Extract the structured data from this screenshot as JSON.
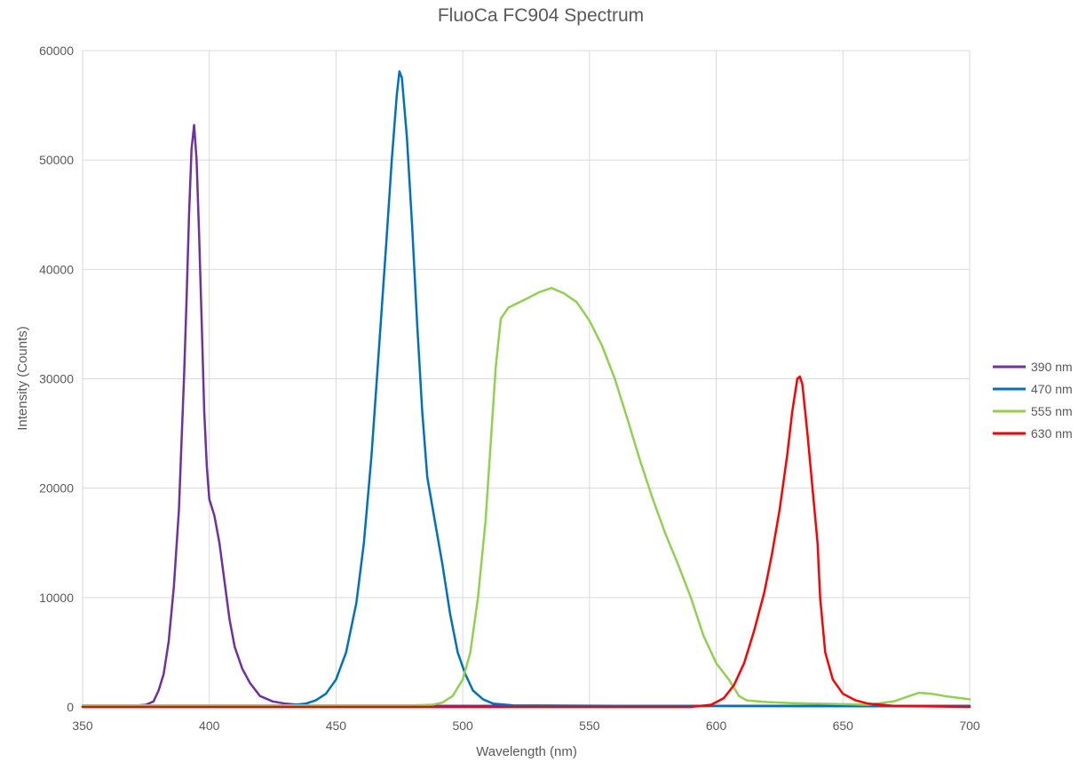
{
  "chart_data": {
    "type": "line",
    "title": "FluoCa FC904 Spectrum",
    "xlabel": "Wavelength (nm)",
    "ylabel": "Intensity (Counts)",
    "xlim": [
      350,
      700
    ],
    "ylim": [
      0,
      60000
    ],
    "x_ticks": [
      350,
      400,
      450,
      500,
      550,
      600,
      650,
      700
    ],
    "y_ticks": [
      0,
      10000,
      20000,
      30000,
      40000,
      50000,
      60000
    ],
    "grid": true,
    "legend_position": "right",
    "series": [
      {
        "name": "390 nm",
        "color": "#7030a0",
        "points": [
          [
            350,
            100
          ],
          [
            370,
            100
          ],
          [
            375,
            200
          ],
          [
            378,
            500
          ],
          [
            380,
            1500
          ],
          [
            382,
            3000
          ],
          [
            384,
            6000
          ],
          [
            386,
            11000
          ],
          [
            388,
            18000
          ],
          [
            389,
            24000
          ],
          [
            390,
            30000
          ],
          [
            391,
            37000
          ],
          [
            392,
            45000
          ],
          [
            393,
            51000
          ],
          [
            394,
            53200
          ],
          [
            395,
            50000
          ],
          [
            396,
            43000
          ],
          [
            397,
            35000
          ],
          [
            398,
            27000
          ],
          [
            399,
            22000
          ],
          [
            400,
            19000
          ],
          [
            402,
            17500
          ],
          [
            404,
            15000
          ],
          [
            406,
            11500
          ],
          [
            408,
            8000
          ],
          [
            410,
            5500
          ],
          [
            413,
            3500
          ],
          [
            416,
            2200
          ],
          [
            420,
            1000
          ],
          [
            425,
            500
          ],
          [
            430,
            300
          ],
          [
            435,
            200
          ],
          [
            440,
            150
          ],
          [
            460,
            150
          ],
          [
            480,
            100
          ],
          [
            700,
            100
          ]
        ]
      },
      {
        "name": "470 nm",
        "color": "#0070c0",
        "points": [
          [
            350,
            50
          ],
          [
            430,
            100
          ],
          [
            438,
            300
          ],
          [
            442,
            600
          ],
          [
            446,
            1200
          ],
          [
            450,
            2500
          ],
          [
            454,
            5000
          ],
          [
            458,
            9500
          ],
          [
            461,
            15000
          ],
          [
            464,
            23000
          ],
          [
            467,
            33000
          ],
          [
            470,
            43000
          ],
          [
            472,
            50000
          ],
          [
            474,
            56000
          ],
          [
            475,
            58100
          ],
          [
            476,
            57500
          ],
          [
            478,
            52000
          ],
          [
            480,
            44000
          ],
          [
            482,
            35000
          ],
          [
            484,
            27000
          ],
          [
            486,
            21000
          ],
          [
            489,
            17000
          ],
          [
            492,
            13000
          ],
          [
            495,
            8500
          ],
          [
            498,
            5000
          ],
          [
            501,
            3000
          ],
          [
            504,
            1500
          ],
          [
            508,
            700
          ],
          [
            512,
            300
          ],
          [
            520,
            150
          ],
          [
            560,
            100
          ],
          [
            700,
            50
          ]
        ]
      },
      {
        "name": "555 nm",
        "color": "#92d050",
        "points": [
          [
            350,
            150
          ],
          [
            470,
            150
          ],
          [
            480,
            150
          ],
          [
            488,
            200
          ],
          [
            492,
            400
          ],
          [
            496,
            1000
          ],
          [
            500,
            2500
          ],
          [
            503,
            5000
          ],
          [
            506,
            10000
          ],
          [
            509,
            17000
          ],
          [
            511,
            24000
          ],
          [
            513,
            31000
          ],
          [
            515,
            35500
          ],
          [
            518,
            36500
          ],
          [
            525,
            37300
          ],
          [
            530,
            37900
          ],
          [
            535,
            38300
          ],
          [
            540,
            37800
          ],
          [
            545,
            37000
          ],
          [
            550,
            35300
          ],
          [
            555,
            33000
          ],
          [
            560,
            30000
          ],
          [
            565,
            26300
          ],
          [
            570,
            22500
          ],
          [
            575,
            19000
          ],
          [
            580,
            15800
          ],
          [
            585,
            13000
          ],
          [
            590,
            10000
          ],
          [
            595,
            6500
          ],
          [
            600,
            4000
          ],
          [
            605,
            2500
          ],
          [
            609,
            1000
          ],
          [
            612,
            600
          ],
          [
            620,
            450
          ],
          [
            630,
            350
          ],
          [
            640,
            300
          ],
          [
            650,
            250
          ],
          [
            660,
            200
          ],
          [
            670,
            500
          ],
          [
            675,
            900
          ],
          [
            680,
            1300
          ],
          [
            685,
            1200
          ],
          [
            690,
            1000
          ],
          [
            700,
            700
          ]
        ]
      },
      {
        "name": "630 nm",
        "color": "#ff0000",
        "points": [
          [
            350,
            0
          ],
          [
            590,
            0
          ],
          [
            598,
            200
          ],
          [
            603,
            800
          ],
          [
            607,
            2000
          ],
          [
            611,
            4000
          ],
          [
            615,
            7000
          ],
          [
            619,
            10500
          ],
          [
            622,
            14000
          ],
          [
            625,
            18000
          ],
          [
            628,
            23000
          ],
          [
            630,
            27000
          ],
          [
            632,
            30000
          ],
          [
            633,
            30200
          ],
          [
            634,
            29500
          ],
          [
            636,
            25000
          ],
          [
            638,
            20000
          ],
          [
            640,
            15000
          ],
          [
            641,
            10000
          ],
          [
            643,
            5000
          ],
          [
            646,
            2500
          ],
          [
            650,
            1200
          ],
          [
            655,
            600
          ],
          [
            660,
            300
          ],
          [
            670,
            100
          ],
          [
            700,
            0
          ]
        ]
      }
    ]
  }
}
